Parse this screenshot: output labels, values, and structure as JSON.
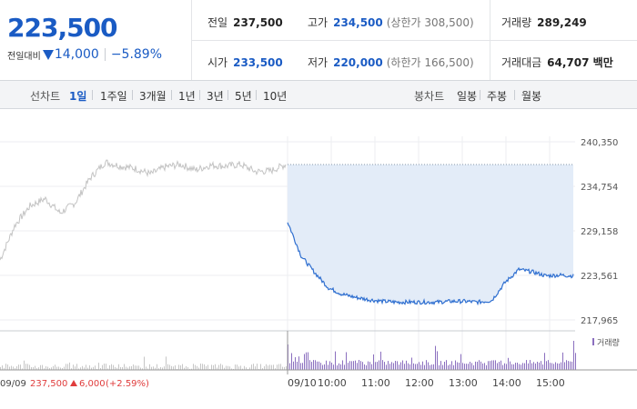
{
  "quote": {
    "price": "223,500",
    "change_label": "전일대비",
    "change_amount": "14,000",
    "change_rate": "−5.89%",
    "direction_icon": "down-triangle-icon",
    "colors": {
      "down": "#1a5bc4",
      "up": "#e03c3c"
    },
    "stats": {
      "prev_close": {
        "label": "전일",
        "value": "237,500"
      },
      "high": {
        "label": "고가",
        "value": "234,500",
        "extra": "(상한가 308,500)"
      },
      "volume": {
        "label": "거래량",
        "value": "289,249"
      },
      "open": {
        "label": "시가",
        "value": "233,500"
      },
      "low": {
        "label": "저가",
        "value": "220,000",
        "extra": "(하한가 166,500)"
      },
      "trade_value": {
        "label": "거래대금",
        "value": "64,707 백만"
      }
    }
  },
  "toolbar": {
    "line_chart_label": "선차트",
    "ranges": [
      "1일",
      "1주일",
      "3개월",
      "1년",
      "3년",
      "5년",
      "10년"
    ],
    "active_range": "1일",
    "candle_label": "봉차트",
    "candles": [
      "일봉",
      "주봉",
      "월봉"
    ]
  },
  "chart": {
    "y_ticks": [
      "240,350",
      "234,754",
      "229,158",
      "223,561",
      "217,965"
    ],
    "x_ticks": [
      "09/10",
      "10:00",
      "11:00",
      "12:00",
      "13:00",
      "14:00",
      "15:00"
    ],
    "prev_day": {
      "date": "09/09",
      "close": "237,500",
      "change": "6,000",
      "rate": "(+2.59%)"
    },
    "volume_legend": "거래량"
  },
  "chart_data": {
    "type": "line",
    "ylim": [
      217965,
      240350
    ],
    "series": [
      {
        "x": [
          "09/09 09:00",
          "09:20",
          "09:40",
          "10:00",
          "10:20",
          "10:40",
          "11:00",
          "11:20",
          "11:40",
          "12:00",
          "12:20",
          "12:40",
          "13:00",
          "13:20",
          "13:40",
          "14:00",
          "14:20",
          "14:40",
          "15:00",
          "15:20"
        ],
        "values": [
          225500,
          229900,
          232300,
          233200,
          231400,
          232700,
          235800,
          237800,
          237300,
          237000,
          236300,
          237200,
          237500,
          236800,
          237400,
          237300,
          237500,
          236600,
          236700,
          237500
        ]
      },
      {
        "x": [
          "09/10 09:00",
          "09:05",
          "09:10",
          "09:20",
          "09:40",
          "10:00",
          "10:20",
          "10:40",
          "11:00",
          "11:20",
          "11:40",
          "12:00",
          "12:20",
          "12:40",
          "13:00",
          "13:20",
          "13:40",
          "14:00",
          "14:20",
          "14:40",
          "15:00",
          "15:20"
        ],
        "values": [
          230300,
          226000,
          223900,
          222000,
          221200,
          220800,
          220500,
          220300,
          220200,
          220200,
          220200,
          220200,
          220300,
          220300,
          220200,
          220400,
          222700,
          224300,
          224000,
          223500,
          223600,
          223500
        ]
      }
    ],
    "volume": "bars shown in lower panel; day 2 heavier than day 1"
  }
}
